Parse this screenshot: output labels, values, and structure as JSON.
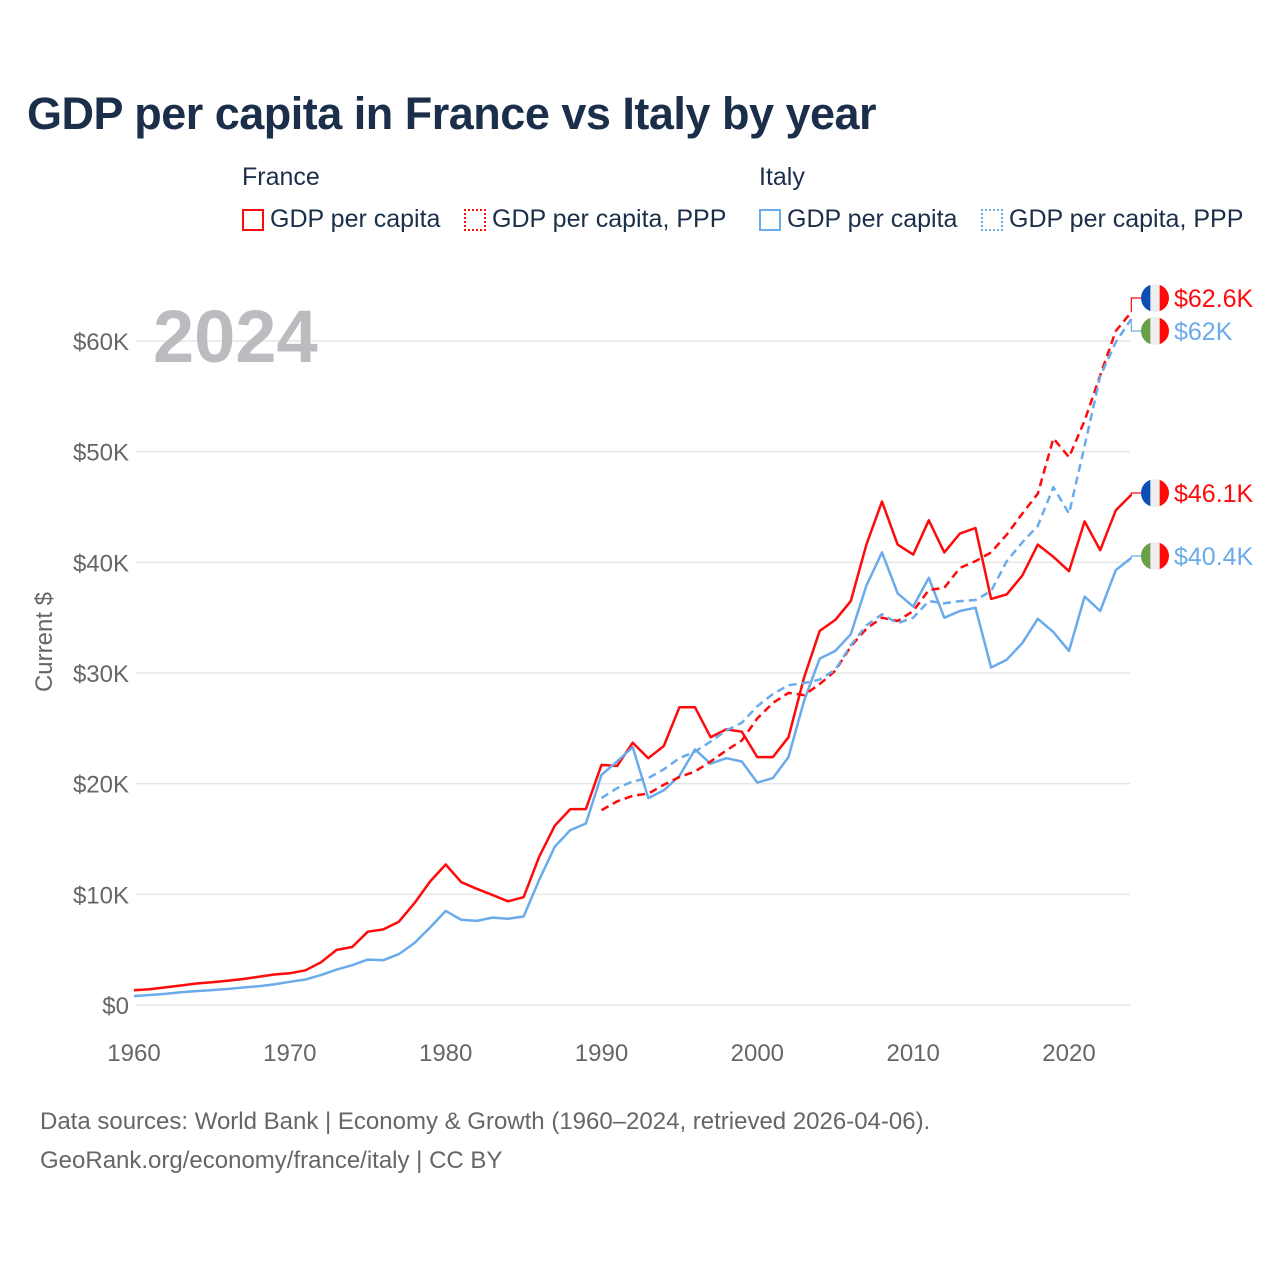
{
  "title": "GDP per capita in France vs Italy by year",
  "legend": {
    "groups": [
      {
        "name": "France",
        "items": [
          "GDP per capita",
          "GDP per capita, PPP"
        ]
      },
      {
        "name": "Italy",
        "items": [
          "GDP per capita",
          "GDP per capita, PPP"
        ]
      }
    ]
  },
  "colors": {
    "france": "#ff0a0a",
    "italy": "#6aabeb",
    "title": "#1b2f4b",
    "year": "#bcbcc0"
  },
  "year_label": "2024",
  "footer": {
    "line1": "Data sources: World Bank | Economy & Growth (1960–2024, retrieved 2026-04-06).",
    "line2": "GeoRank.org/economy/france/italy | CC BY"
  },
  "chart_data": {
    "type": "line",
    "title": "GDP per capita in France vs Italy by year",
    "xlabel": "",
    "ylabel": "Current $",
    "xlim": [
      1960,
      2024
    ],
    "ylim": [
      0,
      65
    ],
    "y_unit": "thousand USD",
    "x_ticks": [
      "1960",
      "1970",
      "1980",
      "1990",
      "2000",
      "2010",
      "2020"
    ],
    "y_ticks": [
      "$0",
      "$10K",
      "$20K",
      "$30K",
      "$40K",
      "$50K",
      "$60K"
    ],
    "grid": true,
    "legend_position": "top",
    "series": [
      {
        "name": "France GDP per capita",
        "country": "france",
        "style": "solid",
        "start": 1960,
        "end_label": "$46.1K",
        "values": [
          1.34,
          1.43,
          1.59,
          1.76,
          1.94,
          2.05,
          2.2,
          2.35,
          2.55,
          2.76,
          2.86,
          3.14,
          3.86,
          4.98,
          5.24,
          6.62,
          6.83,
          7.53,
          9.21,
          11.16,
          12.7,
          11.1,
          10.5,
          9.95,
          9.37,
          9.74,
          13.4,
          16.2,
          17.7,
          17.7,
          21.7,
          21.6,
          23.7,
          22.3,
          23.4,
          26.9,
          26.9,
          24.2,
          24.9,
          24.7,
          22.4,
          22.4,
          24.2,
          29.6,
          33.8,
          34.8,
          36.5,
          41.6,
          45.5,
          41.6,
          40.7,
          43.8,
          40.9,
          42.6,
          43.1,
          36.7,
          37.1,
          38.8,
          41.6,
          40.5,
          39.2,
          43.7,
          41.1,
          44.7,
          46.1
        ]
      },
      {
        "name": "Italy GDP per capita",
        "country": "italy",
        "style": "solid",
        "start": 1960,
        "end_label": "$40.4K",
        "values": [
          0.8,
          0.9,
          1.0,
          1.15,
          1.26,
          1.35,
          1.45,
          1.58,
          1.7,
          1.86,
          2.1,
          2.3,
          2.7,
          3.2,
          3.6,
          4.1,
          4.05,
          4.6,
          5.6,
          7.0,
          8.5,
          7.7,
          7.6,
          7.9,
          7.8,
          8.0,
          11.3,
          14.3,
          15.8,
          16.4,
          20.8,
          22.0,
          23.3,
          18.7,
          19.4,
          20.7,
          23.1,
          21.8,
          22.3,
          22.0,
          20.1,
          20.5,
          22.4,
          27.5,
          31.3,
          32.0,
          33.5,
          37.9,
          40.9,
          37.2,
          36.0,
          38.6,
          35.0,
          35.6,
          35.9,
          30.5,
          31.2,
          32.7,
          34.9,
          33.7,
          32.0,
          36.9,
          35.6,
          39.3,
          40.4
        ]
      },
      {
        "name": "France GDP per capita, PPP",
        "country": "france",
        "style": "dashed",
        "start": 1990,
        "end_label": "$62.6K",
        "values": [
          17.6,
          18.4,
          18.9,
          19.1,
          19.9,
          20.6,
          21.1,
          22.0,
          23.0,
          23.9,
          25.9,
          27.3,
          28.2,
          28.0,
          29.0,
          30.2,
          32.4,
          34.0,
          35.0,
          34.7,
          35.6,
          37.5,
          37.7,
          39.5,
          40.1,
          40.9,
          42.5,
          44.4,
          46.2,
          51.2,
          49.5,
          52.8,
          56.9,
          60.9,
          62.6
        ]
      },
      {
        "name": "Italy GDP per capita, PPP",
        "country": "italy",
        "style": "dashed",
        "start": 1990,
        "end_label": "$62K",
        "values": [
          18.7,
          19.6,
          20.2,
          20.5,
          21.3,
          22.3,
          22.9,
          23.8,
          24.8,
          25.5,
          27.0,
          28.1,
          28.9,
          29.1,
          29.4,
          30.3,
          32.5,
          34.3,
          35.3,
          34.5,
          35.0,
          36.5,
          36.3,
          36.5,
          36.6,
          37.4,
          40.1,
          41.8,
          43.3,
          46.8,
          44.4,
          50.5,
          56.8,
          59.9,
          62.0
        ]
      }
    ]
  }
}
